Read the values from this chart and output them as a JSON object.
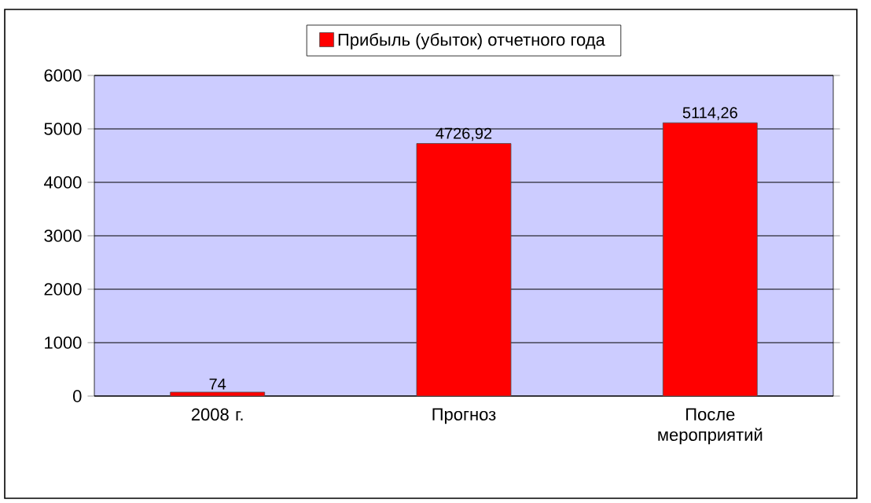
{
  "chart_data": {
    "type": "bar",
    "categories": [
      "2008 г.",
      "Прогноз",
      "После мероприятий"
    ],
    "series": [
      {
        "name": "Прибыль (убыток) отчетного года",
        "color": "#ff0000",
        "values": [
          74,
          4726.92,
          5114.26
        ],
        "value_labels": [
          "74",
          "4726,92",
          "5114,26"
        ]
      }
    ],
    "ylim": [
      0,
      6000
    ],
    "yticks": [
      0,
      1000,
      2000,
      3000,
      4000,
      5000,
      6000
    ],
    "grid": "y",
    "legend": "top"
  }
}
